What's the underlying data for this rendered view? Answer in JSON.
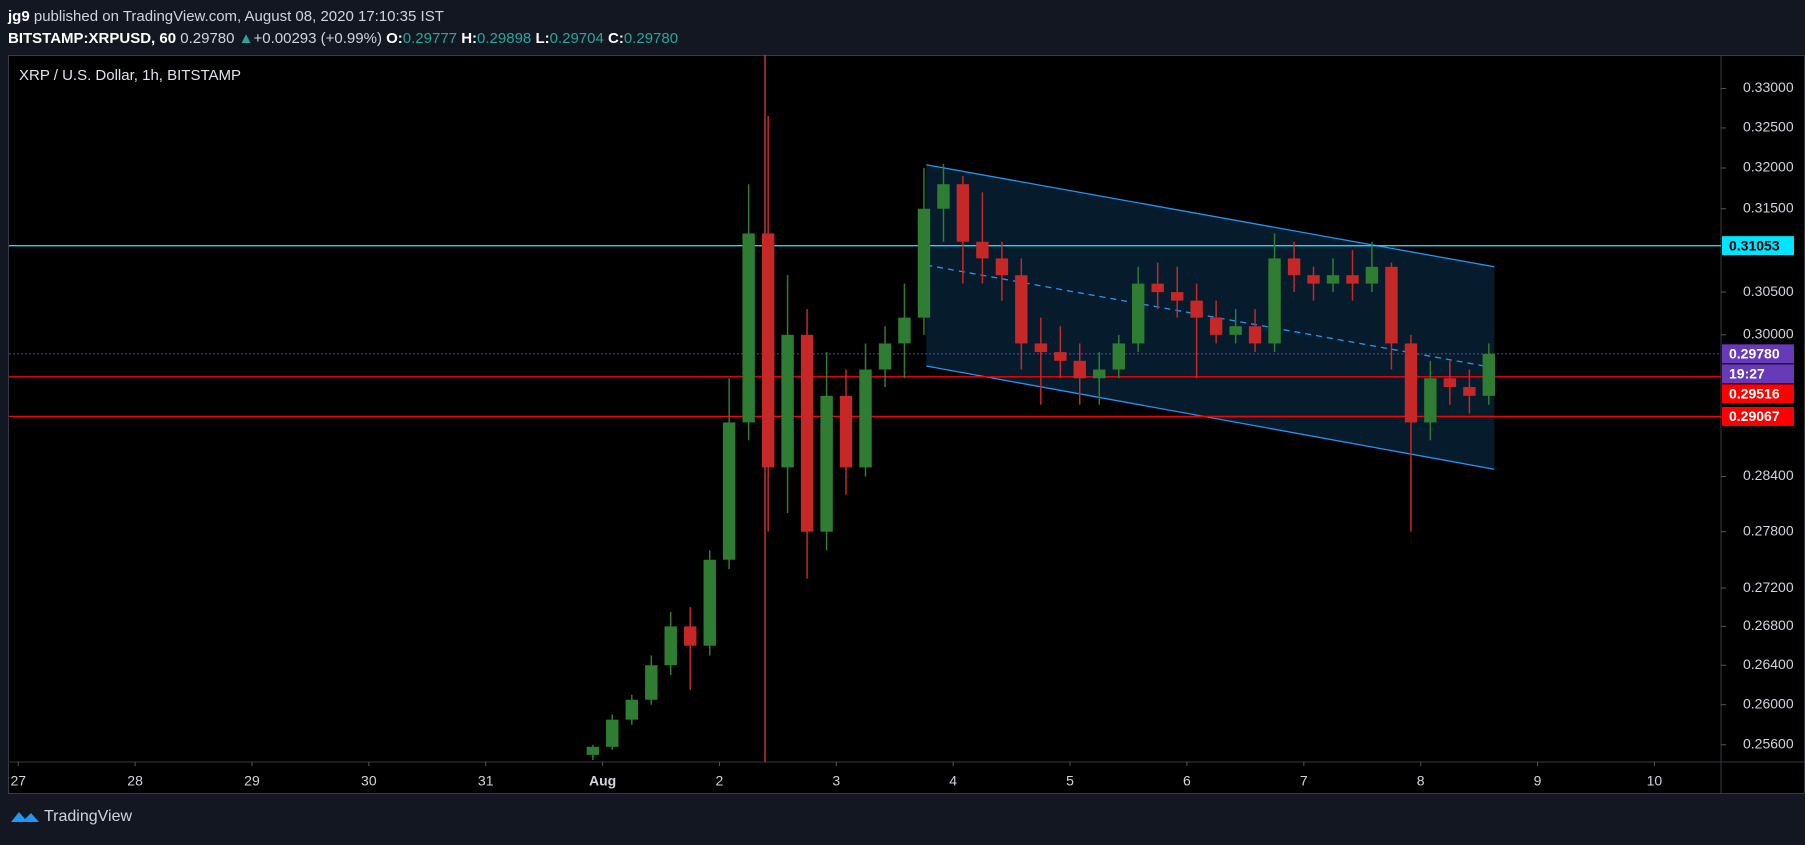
{
  "header": {
    "user": "jg9",
    "published": "published on TradingView.com, August 08, 2020 17:10:35 IST",
    "symbol": "BITSTAMP:XRPUSD, 60",
    "last": "0.29780",
    "change": "+0.00293 (+0.99%)",
    "ohlc": [
      {
        "label": "O:",
        "value": "0.29777"
      },
      {
        "label": "H:",
        "value": "0.29898"
      },
      {
        "label": "L:",
        "value": "0.29704"
      },
      {
        "label": "C:",
        "value": "0.29780"
      }
    ]
  },
  "footer": {
    "brand": "TradingView"
  },
  "chart_data": {
    "type": "candlestick",
    "title": "XRP / U.S. Dollar, 1h, BITSTAMP",
    "log_scale": true,
    "up_color": "#2e7d32",
    "down_color": "#c62828",
    "xlim": [
      -0.079,
      14.57
    ],
    "ylim": [
      0.2543,
      0.3343
    ],
    "xticks": [
      {
        "value": 0,
        "label": "27"
      },
      {
        "value": 1,
        "label": "28"
      },
      {
        "value": 2,
        "label": "29"
      },
      {
        "value": 3,
        "label": "30"
      },
      {
        "value": 4,
        "label": "31"
      },
      {
        "value": 5,
        "label": "Aug"
      },
      {
        "value": 6,
        "label": "2"
      },
      {
        "value": 7,
        "label": "3"
      },
      {
        "value": 8,
        "label": "4"
      },
      {
        "value": 9,
        "label": "5"
      },
      {
        "value": 10,
        "label": "6"
      },
      {
        "value": 11,
        "label": "7"
      },
      {
        "value": 12,
        "label": "8"
      },
      {
        "value": 13,
        "label": "9"
      },
      {
        "value": 14,
        "label": "10"
      }
    ],
    "yticks": [
      {
        "value": 0.33,
        "label": "0.33000"
      },
      {
        "value": 0.325,
        "label": "0.32500"
      },
      {
        "value": 0.32,
        "label": "0.32000"
      },
      {
        "value": 0.315,
        "label": "0.31500"
      },
      {
        "value": 0.305,
        "label": "0.30500"
      },
      {
        "value": 0.3,
        "label": "0.30000"
      },
      {
        "value": 0.284,
        "label": "0.28400"
      },
      {
        "value": 0.278,
        "label": "0.27800"
      },
      {
        "value": 0.272,
        "label": "0.27200"
      },
      {
        "value": 0.268,
        "label": "0.26800"
      },
      {
        "value": 0.264,
        "label": "0.26400"
      },
      {
        "value": 0.26,
        "label": "0.26000"
      },
      {
        "value": 0.256,
        "label": "0.25600"
      }
    ],
    "x": [
      4.917,
      5.083,
      5.25,
      5.417,
      5.583,
      5.75,
      5.917,
      6.083,
      6.25,
      6.417,
      6.583,
      6.75,
      6.917,
      7.083,
      7.25,
      7.417,
      7.583,
      7.75,
      7.917,
      8.083,
      8.25,
      8.417,
      8.583,
      8.75,
      8.917,
      9.083,
      9.25,
      9.417,
      9.583,
      9.75,
      9.917,
      10.083,
      10.25,
      10.417,
      10.583,
      10.75,
      10.917,
      11.083,
      11.25,
      11.417,
      11.583,
      11.75,
      11.917,
      12.083,
      12.25,
      12.417,
      12.583
    ],
    "open": [
      0.255,
      0.2558,
      0.2585,
      0.2605,
      0.264,
      0.268,
      0.266,
      0.275,
      0.29,
      0.312,
      0.285,
      0.3,
      0.278,
      0.293,
      0.285,
      0.296,
      0.299,
      0.302,
      0.315,
      0.318,
      0.311,
      0.309,
      0.307,
      0.299,
      0.298,
      0.297,
      0.295,
      0.296,
      0.299,
      0.306,
      0.305,
      0.304,
      0.302,
      0.3,
      0.301,
      0.299,
      0.309,
      0.307,
      0.306,
      0.307,
      0.306,
      0.308,
      0.299,
      0.29,
      0.295,
      0.294,
      0.293
    ],
    "high": [
      0.256,
      0.259,
      0.261,
      0.265,
      0.2695,
      0.27,
      0.276,
      0.295,
      0.318,
      0.3265,
      0.307,
      0.303,
      0.298,
      0.296,
      0.299,
      0.301,
      0.306,
      0.32,
      0.3205,
      0.319,
      0.317,
      0.311,
      0.309,
      0.302,
      0.301,
      0.299,
      0.298,
      0.3,
      0.308,
      0.3085,
      0.308,
      0.306,
      0.304,
      0.303,
      0.303,
      0.312,
      0.311,
      0.308,
      0.309,
      0.31,
      0.311,
      0.3085,
      0.3,
      0.297,
      0.297,
      0.296,
      0.299
    ],
    "low": [
      0.2545,
      0.2555,
      0.258,
      0.26,
      0.263,
      0.2615,
      0.265,
      0.274,
      0.288,
      0.278,
      0.28,
      0.273,
      0.276,
      0.282,
      0.284,
      0.294,
      0.295,
      0.3,
      0.311,
      0.306,
      0.306,
      0.304,
      0.296,
      0.292,
      0.295,
      0.292,
      0.292,
      0.295,
      0.298,
      0.303,
      0.302,
      0.295,
      0.299,
      0.299,
      0.298,
      0.298,
      0.305,
      0.304,
      0.305,
      0.304,
      0.305,
      0.296,
      0.278,
      0.288,
      0.292,
      0.291,
      0.292
    ],
    "close": [
      0.2558,
      0.2585,
      0.2605,
      0.264,
      0.268,
      0.266,
      0.275,
      0.29,
      0.312,
      0.285,
      0.3,
      0.278,
      0.293,
      0.285,
      0.296,
      0.299,
      0.302,
      0.315,
      0.318,
      0.311,
      0.309,
      0.307,
      0.299,
      0.298,
      0.297,
      0.295,
      0.296,
      0.299,
      0.306,
      0.305,
      0.304,
      0.302,
      0.3,
      0.301,
      0.299,
      0.309,
      0.307,
      0.306,
      0.307,
      0.306,
      0.308,
      0.299,
      0.29,
      0.295,
      0.294,
      0.293,
      0.2978
    ],
    "channel": {
      "x": [
        7.77,
        12.63
      ],
      "upper": [
        0.3204,
        0.308
      ],
      "middle": [
        0.3082,
        0.2962
      ],
      "lower": [
        0.2964,
        0.2848
      ],
      "color": "#2196f3"
    },
    "vertical_line": {
      "x": 6.39,
      "color": "#e53935"
    },
    "price_lines": [
      {
        "value": 0.31053,
        "label": "0.31053",
        "color": "#00e5ff",
        "style": "solid"
      },
      {
        "value": 0.2978,
        "label": "0.29780",
        "color": "#673ab7",
        "style": "dotted"
      },
      {
        "value": 0.29516,
        "label": "0.29516",
        "color": "#ff0000",
        "style": "solid"
      },
      {
        "value": 0.29067,
        "label": "0.29067",
        "color": "#ff0000",
        "style": "solid"
      }
    ],
    "countdown": "19:27"
  }
}
